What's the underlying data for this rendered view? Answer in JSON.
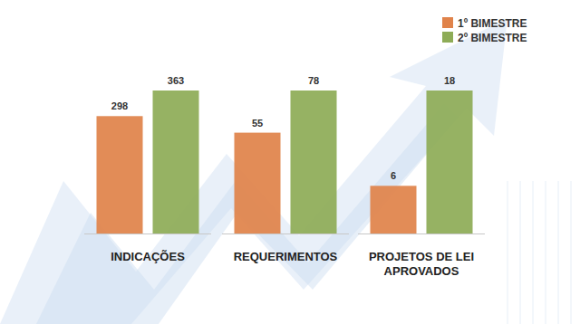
{
  "chart_data": [
    {
      "type": "bar",
      "categories": [
        "INDICAÇÕES"
      ],
      "series": [
        {
          "name": "1º BIMESTRE",
          "color": "#e0834a",
          "values": [
            298
          ]
        },
        {
          "name": "2º BIMESTRE",
          "color": "#8eac57",
          "values": [
            363
          ]
        }
      ],
      "ylim": [
        0,
        363
      ],
      "data_labels": true,
      "tick_labels": "x",
      "legend": "top-right"
    },
    {
      "type": "bar",
      "categories": [
        "REQUERIMENTOS"
      ],
      "series": [
        {
          "color": "#e0834a",
          "values": [
            55
          ]
        },
        {
          "color": "#8eac57",
          "values": [
            78
          ]
        }
      ],
      "ylim": [
        0,
        78
      ],
      "data_labels": true,
      "tick_labels": "x"
    },
    {
      "type": "bar",
      "categories": [
        "PROJETOS DE LEI APROVADOS"
      ],
      "series": [
        {
          "color": "#e0834a",
          "values": [
            6
          ]
        },
        {
          "color": "#8eac57",
          "values": [
            18
          ]
        }
      ],
      "ylim": [
        0,
        18
      ],
      "data_labels": true,
      "tick_labels": "x"
    }
  ]
}
